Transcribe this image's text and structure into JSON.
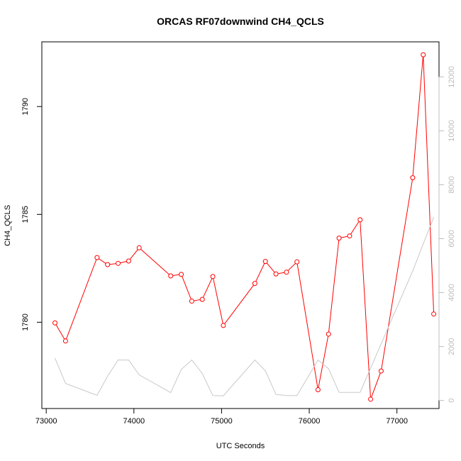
{
  "chart_data": {
    "type": "line",
    "title": "ORCAS RF07downwind CH4_QCLS",
    "xlabel": "UTC Seconds",
    "ylabel": "CH4_QCLS",
    "xlim": [
      72950,
      77480
    ],
    "ylim": [
      1776,
      1793
    ],
    "y2lim": [
      -300,
      13300
    ],
    "x_ticks": [
      73000,
      74000,
      75000,
      76000,
      77000
    ],
    "y_ticks": [
      1780,
      1785,
      1790
    ],
    "y2_ticks": [
      0,
      2000,
      4000,
      6000,
      8000,
      10000,
      12000
    ],
    "series": [
      {
        "color": "#ff0000",
        "axis": "left",
        "markers": "open-circle",
        "x": [
          73100,
          73220,
          73580,
          73700,
          73820,
          73940,
          74060,
          74420,
          74540,
          74660,
          74780,
          74900,
          75020,
          75380,
          75500,
          75620,
          75740,
          75860,
          76100,
          76220,
          76340,
          76460,
          76580,
          76700,
          76820,
          77180,
          77300,
          77420
        ],
        "values": [
          1779.97,
          1779.13,
          1783.0,
          1782.67,
          1782.73,
          1782.84,
          1783.45,
          1782.15,
          1782.22,
          1780.98,
          1781.06,
          1782.12,
          1779.85,
          1781.8,
          1782.82,
          1782.24,
          1782.32,
          1782.8,
          1776.87,
          1779.45,
          1783.9,
          1784.0,
          1784.75,
          1776.43,
          1777.74,
          1786.7,
          1792.4,
          1780.38
        ]
      },
      {
        "color": "#c8c8c8",
        "axis": "right",
        "x": [
          73100,
          73220,
          73580,
          73700,
          73820,
          73940,
          74060,
          74420,
          74540,
          74660,
          74780,
          74900,
          75020,
          75380,
          75500,
          75620,
          75740,
          75860,
          76100,
          76220,
          76340,
          76460,
          76580,
          76700,
          76820,
          77180,
          77300,
          77420
        ],
        "values": [
          1570,
          630,
          190,
          900,
          1500,
          1500,
          950,
          290,
          1150,
          1500,
          1000,
          180,
          170,
          1500,
          1100,
          220,
          180,
          180,
          1500,
          1180,
          300,
          300,
          300,
          1200,
          2100,
          4800,
          5800,
          6800
        ]
      }
    ]
  }
}
